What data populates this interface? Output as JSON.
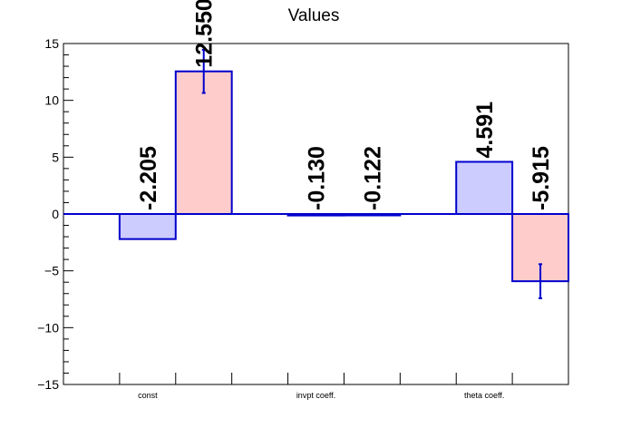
{
  "chart_data": {
    "type": "bar",
    "title": "Values",
    "xlabel": "",
    "ylabel": "",
    "categories": [
      "const",
      "invpt coeff.",
      "theta coeff."
    ],
    "ylim": [
      -15,
      15
    ],
    "yticks": [
      -15,
      -10,
      -5,
      0,
      5,
      10,
      15
    ],
    "ytick_labels": [
      "−15",
      "−10",
      "−5",
      "0",
      "5",
      "10",
      "15"
    ],
    "grid": false,
    "series": [
      {
        "values": [
          -2.205,
          -0.13,
          4.591
        ],
        "errors": [
          0,
          0,
          0
        ],
        "labels": [
          "-2.205",
          "-0.130",
          "4.591"
        ],
        "fill": "#ccccff",
        "edge": "#0000cc"
      },
      {
        "values": [
          12.55,
          -0.122,
          -5.915
        ],
        "errors": [
          1.9,
          0,
          1.5
        ],
        "labels": [
          "12.550",
          "-0.122",
          "-5.915"
        ],
        "fill": "#ffcccc",
        "edge": "#0000cc"
      }
    ]
  }
}
